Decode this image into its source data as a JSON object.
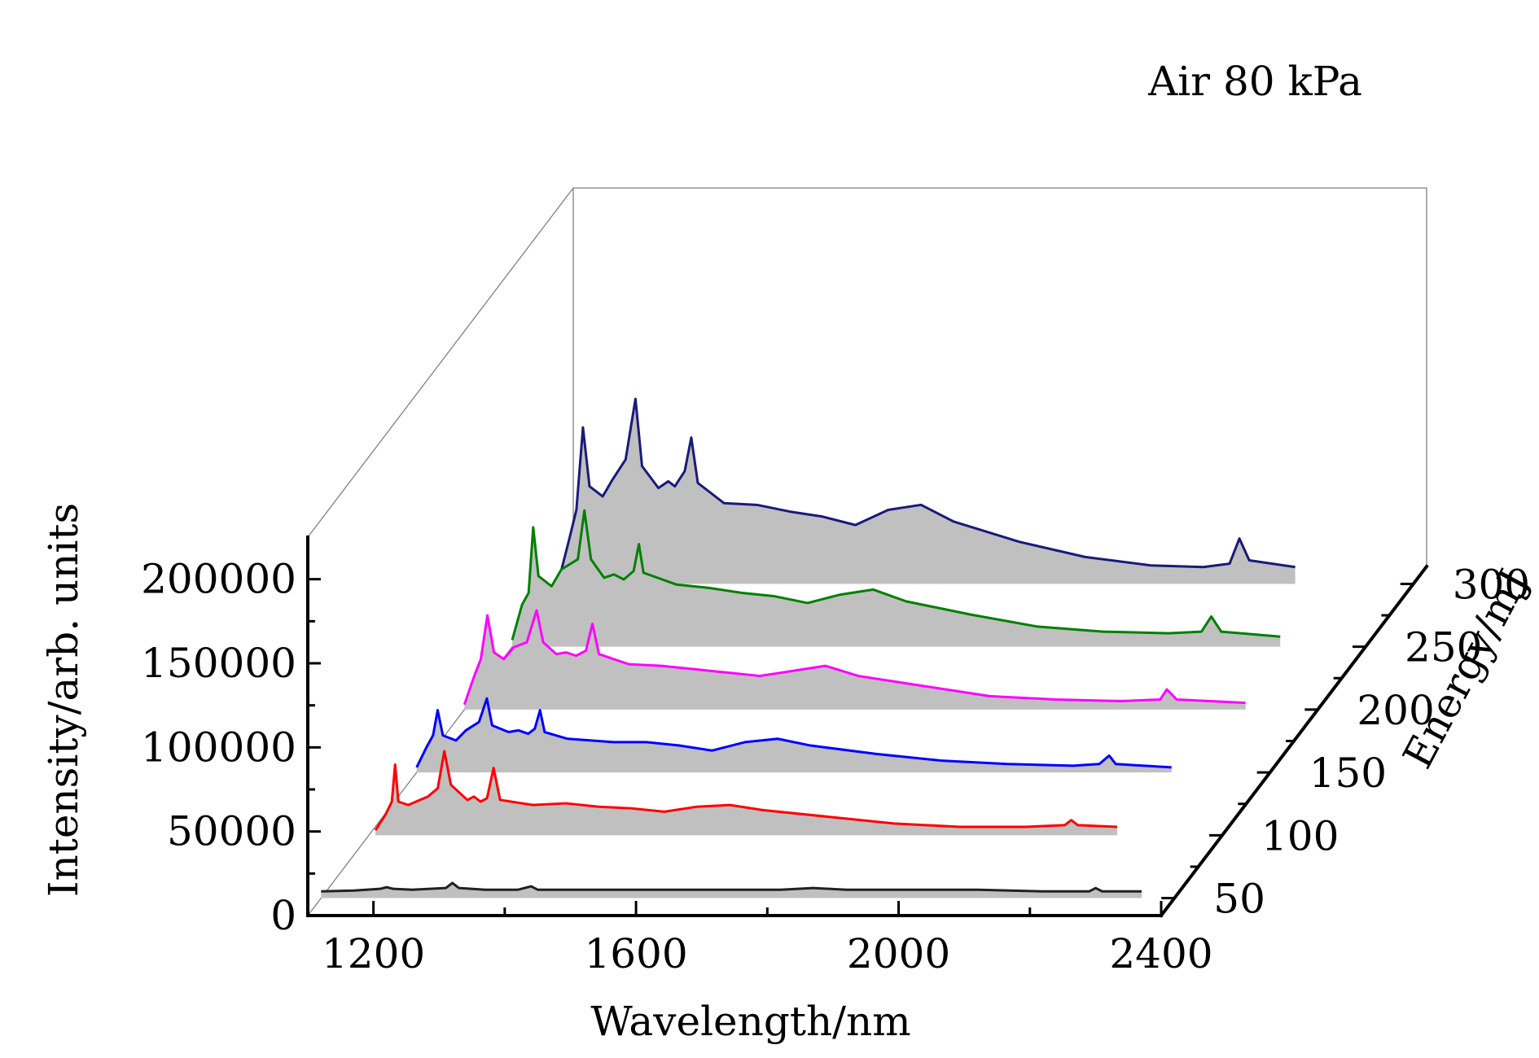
{
  "chart_data": {
    "type": "line",
    "subtype": "waterfall-3d",
    "annotation": "Air 80 kPa",
    "xlabel": "Wavelength/nm",
    "ylabel": "Intensity/arb. units",
    "zlabel": "Energy/mJ",
    "xlim": [
      1100,
      2400
    ],
    "ylim": [
      0,
      225000
    ],
    "xticks": [
      1200,
      1600,
      2000,
      2400
    ],
    "yticks": [
      0,
      50000,
      100000,
      150000,
      200000
    ],
    "zticks": [
      50,
      100,
      150,
      200,
      250,
      300
    ],
    "fill_color": "#c0c0c0",
    "series": [
      {
        "z": 50,
        "color": "#202020",
        "points": [
          [
            1100,
            4000
          ],
          [
            1150,
            4500
          ],
          [
            1190,
            5500
          ],
          [
            1200,
            6500
          ],
          [
            1210,
            5500
          ],
          [
            1240,
            5000
          ],
          [
            1290,
            6000
          ],
          [
            1300,
            9000
          ],
          [
            1310,
            6000
          ],
          [
            1350,
            5000
          ],
          [
            1400,
            5000
          ],
          [
            1420,
            7000
          ],
          [
            1430,
            5000
          ],
          [
            1500,
            5000
          ],
          [
            1600,
            5000
          ],
          [
            1700,
            5000
          ],
          [
            1800,
            5000
          ],
          [
            1850,
            6000
          ],
          [
            1900,
            5000
          ],
          [
            2000,
            5000
          ],
          [
            2100,
            5000
          ],
          [
            2200,
            4000
          ],
          [
            2270,
            4000
          ],
          [
            2280,
            6000
          ],
          [
            2290,
            4000
          ],
          [
            2350,
            4000
          ]
        ]
      },
      {
        "z": 100,
        "color": "#ff0000",
        "points": [
          [
            1110,
            3000
          ],
          [
            1125,
            12000
          ],
          [
            1135,
            20000
          ],
          [
            1140,
            42000
          ],
          [
            1145,
            20000
          ],
          [
            1160,
            18000
          ],
          [
            1190,
            23000
          ],
          [
            1205,
            28000
          ],
          [
            1215,
            50000
          ],
          [
            1225,
            30000
          ],
          [
            1250,
            21000
          ],
          [
            1260,
            23000
          ],
          [
            1270,
            20000
          ],
          [
            1280,
            22000
          ],
          [
            1290,
            40000
          ],
          [
            1300,
            21000
          ],
          [
            1350,
            18000
          ],
          [
            1400,
            19000
          ],
          [
            1450,
            17000
          ],
          [
            1500,
            16000
          ],
          [
            1550,
            14000
          ],
          [
            1600,
            17000
          ],
          [
            1650,
            18000
          ],
          [
            1700,
            15000
          ],
          [
            1800,
            11000
          ],
          [
            1900,
            7000
          ],
          [
            2000,
            5000
          ],
          [
            2100,
            5000
          ],
          [
            2160,
            6000
          ],
          [
            2170,
            9000
          ],
          [
            2180,
            6000
          ],
          [
            2240,
            5000
          ]
        ]
      },
      {
        "z": 150,
        "color": "#0000ff",
        "points": [
          [
            1100,
            3000
          ],
          [
            1115,
            15000
          ],
          [
            1125,
            22000
          ],
          [
            1132,
            37000
          ],
          [
            1140,
            22000
          ],
          [
            1160,
            19000
          ],
          [
            1175,
            25000
          ],
          [
            1195,
            30000
          ],
          [
            1207,
            44000
          ],
          [
            1215,
            28000
          ],
          [
            1240,
            24000
          ],
          [
            1255,
            25000
          ],
          [
            1270,
            23000
          ],
          [
            1280,
            26000
          ],
          [
            1288,
            37000
          ],
          [
            1295,
            24000
          ],
          [
            1330,
            20000
          ],
          [
            1400,
            18000
          ],
          [
            1450,
            18000
          ],
          [
            1500,
            16000
          ],
          [
            1550,
            13000
          ],
          [
            1600,
            18000
          ],
          [
            1650,
            20000
          ],
          [
            1700,
            16000
          ],
          [
            1800,
            11000
          ],
          [
            1900,
            7000
          ],
          [
            2000,
            5000
          ],
          [
            2100,
            4000
          ],
          [
            2140,
            5000
          ],
          [
            2155,
            10000
          ],
          [
            2165,
            5000
          ],
          [
            2250,
            3000
          ]
        ]
      },
      {
        "z": 200,
        "color": "#ff00ff",
        "points": [
          [
            1100,
            3000
          ],
          [
            1115,
            20000
          ],
          [
            1125,
            30000
          ],
          [
            1135,
            56000
          ],
          [
            1145,
            34000
          ],
          [
            1160,
            30000
          ],
          [
            1175,
            37000
          ],
          [
            1195,
            40000
          ],
          [
            1210,
            59000
          ],
          [
            1220,
            40000
          ],
          [
            1240,
            33000
          ],
          [
            1255,
            34000
          ],
          [
            1270,
            32000
          ],
          [
            1285,
            35000
          ],
          [
            1295,
            51000
          ],
          [
            1305,
            33000
          ],
          [
            1350,
            27000
          ],
          [
            1400,
            26000
          ],
          [
            1450,
            24000
          ],
          [
            1500,
            22000
          ],
          [
            1550,
            20000
          ],
          [
            1600,
            23000
          ],
          [
            1650,
            26000
          ],
          [
            1700,
            20000
          ],
          [
            1800,
            14000
          ],
          [
            1900,
            8000
          ],
          [
            2000,
            6000
          ],
          [
            2100,
            5000
          ],
          [
            2160,
            6000
          ],
          [
            2170,
            12000
          ],
          [
            2185,
            6000
          ],
          [
            2290,
            4000
          ]
        ]
      },
      {
        "z": 250,
        "color": "#008000",
        "points": [
          [
            1100,
            4000
          ],
          [
            1115,
            25000
          ],
          [
            1125,
            32000
          ],
          [
            1132,
            71000
          ],
          [
            1140,
            42000
          ],
          [
            1160,
            36000
          ],
          [
            1175,
            46000
          ],
          [
            1200,
            52000
          ],
          [
            1210,
            81000
          ],
          [
            1220,
            52000
          ],
          [
            1240,
            41000
          ],
          [
            1255,
            43000
          ],
          [
            1270,
            40000
          ],
          [
            1285,
            45000
          ],
          [
            1293,
            61000
          ],
          [
            1300,
            44000
          ],
          [
            1350,
            37000
          ],
          [
            1400,
            35000
          ],
          [
            1450,
            32000
          ],
          [
            1500,
            30000
          ],
          [
            1550,
            26000
          ],
          [
            1600,
            31000
          ],
          [
            1650,
            34000
          ],
          [
            1700,
            27000
          ],
          [
            1800,
            19000
          ],
          [
            1900,
            12000
          ],
          [
            2000,
            9000
          ],
          [
            2100,
            8000
          ],
          [
            2150,
            9000
          ],
          [
            2165,
            18000
          ],
          [
            2180,
            9000
          ],
          [
            2270,
            6000
          ]
        ]
      },
      {
        "z": 300,
        "color": "#1a1a7a",
        "points": [
          [
            1100,
            5000
          ],
          [
            1115,
            28000
          ],
          [
            1125,
            44000
          ],
          [
            1135,
            93000
          ],
          [
            1145,
            58000
          ],
          [
            1165,
            52000
          ],
          [
            1180,
            62000
          ],
          [
            1200,
            74000
          ],
          [
            1215,
            110000
          ],
          [
            1225,
            70000
          ],
          [
            1250,
            57000
          ],
          [
            1265,
            61000
          ],
          [
            1275,
            58000
          ],
          [
            1290,
            67000
          ],
          [
            1300,
            87000
          ],
          [
            1310,
            60000
          ],
          [
            1350,
            48000
          ],
          [
            1400,
            47000
          ],
          [
            1450,
            43000
          ],
          [
            1500,
            40000
          ],
          [
            1550,
            35000
          ],
          [
            1600,
            44000
          ],
          [
            1650,
            47000
          ],
          [
            1700,
            37000
          ],
          [
            1800,
            25000
          ],
          [
            1900,
            16000
          ],
          [
            2000,
            11000
          ],
          [
            2080,
            10000
          ],
          [
            2120,
            12000
          ],
          [
            2135,
            27000
          ],
          [
            2150,
            14000
          ],
          [
            2220,
            10000
          ]
        ]
      }
    ]
  }
}
